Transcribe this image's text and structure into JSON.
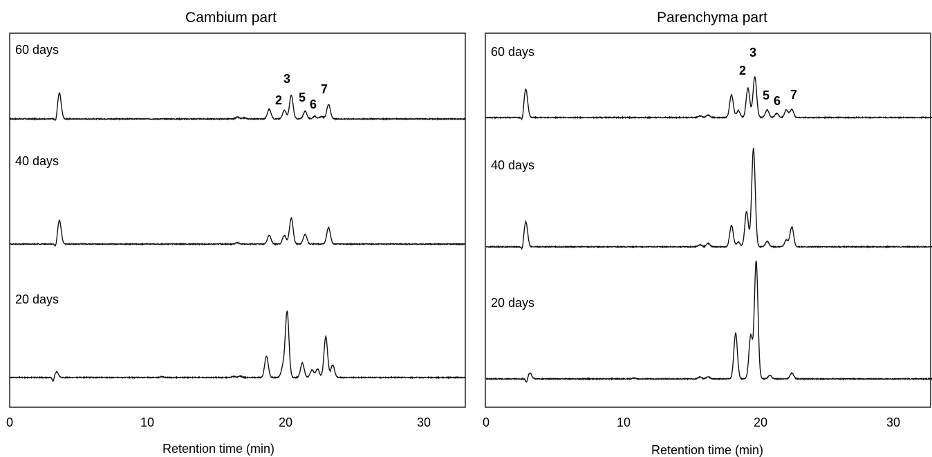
{
  "chart_data": [
    {
      "type": "line",
      "title": "Cambium part",
      "xlabel": "Retention time (min)",
      "ylabel": "",
      "xlim": [
        0,
        33
      ],
      "x_ticks": [
        0,
        10,
        20,
        30
      ],
      "grid": false,
      "series": [
        {
          "name": "60 days",
          "injection": 3.6,
          "peaks": [
            {
              "rt": 3.6,
              "h": 0.75
            },
            {
              "rt": 16.5,
              "h": 0.05
            },
            {
              "rt": 17.0,
              "h": 0.03
            },
            {
              "rt": 18.8,
              "h": 0.28
            },
            {
              "rt": 19.9,
              "h": 0.25
            },
            {
              "rt": 20.4,
              "h": 0.68
            },
            {
              "rt": 21.4,
              "h": 0.22
            },
            {
              "rt": 22.1,
              "h": 0.08
            },
            {
              "rt": 22.6,
              "h": 0.07
            },
            {
              "rt": 23.1,
              "h": 0.42
            }
          ],
          "peak_labels": [
            {
              "text": "2",
              "rt": 19.9
            },
            {
              "text": "3",
              "rt": 20.4
            },
            {
              "text": "5",
              "rt": 21.5
            },
            {
              "text": "6",
              "rt": 22.3
            },
            {
              "text": "7",
              "rt": 23.1
            }
          ]
        },
        {
          "name": "40 days",
          "injection": 3.6,
          "peaks": [
            {
              "rt": 3.6,
              "h": 0.68
            },
            {
              "rt": 16.5,
              "h": 0.04
            },
            {
              "rt": 18.8,
              "h": 0.25
            },
            {
              "rt": 19.9,
              "h": 0.25
            },
            {
              "rt": 20.4,
              "h": 0.75
            },
            {
              "rt": 21.4,
              "h": 0.28
            },
            {
              "rt": 23.1,
              "h": 0.48
            }
          ],
          "peak_labels": []
        },
        {
          "name": "20 days",
          "injection": 3.4,
          "peaks": [
            {
              "rt": 3.4,
              "h": 0.16
            },
            {
              "rt": 11.0,
              "h": 0.02
            },
            {
              "rt": 16.2,
              "h": 0.03
            },
            {
              "rt": 16.7,
              "h": 0.04
            },
            {
              "rt": 18.6,
              "h": 0.62
            },
            {
              "rt": 19.8,
              "h": 0.3
            },
            {
              "rt": 20.1,
              "h": 1.9
            },
            {
              "rt": 21.2,
              "h": 0.42
            },
            {
              "rt": 21.9,
              "h": 0.22
            },
            {
              "rt": 22.3,
              "h": 0.24
            },
            {
              "rt": 22.9,
              "h": 1.18
            },
            {
              "rt": 23.4,
              "h": 0.36
            }
          ],
          "peak_labels": []
        }
      ]
    },
    {
      "type": "line",
      "title": "Parenchyma part",
      "xlabel": "Retention time (min)",
      "ylabel": "",
      "xlim": [
        0,
        33
      ],
      "x_ticks": [
        0,
        10,
        20,
        30
      ],
      "grid": false,
      "series": [
        {
          "name": "60 days",
          "injection": 2.9,
          "peaks": [
            {
              "rt": 2.9,
              "h": 0.82
            },
            {
              "rt": 15.6,
              "h": 0.05
            },
            {
              "rt": 16.2,
              "h": 0.07
            },
            {
              "rt": 17.9,
              "h": 0.66
            },
            {
              "rt": 18.4,
              "h": 0.2
            },
            {
              "rt": 19.1,
              "h": 0.85
            },
            {
              "rt": 19.6,
              "h": 1.18
            },
            {
              "rt": 20.5,
              "h": 0.22
            },
            {
              "rt": 21.2,
              "h": 0.12
            },
            {
              "rt": 21.9,
              "h": 0.22
            },
            {
              "rt": 22.3,
              "h": 0.24
            }
          ],
          "peak_labels": [
            {
              "text": "2",
              "rt": 18.8
            },
            {
              "text": "3",
              "rt": 19.5
            },
            {
              "text": "5",
              "rt": 20.6
            },
            {
              "text": "6",
              "rt": 21.4
            },
            {
              "text": "7",
              "rt": 22.4
            }
          ]
        },
        {
          "name": "40 days",
          "injection": 2.9,
          "peaks": [
            {
              "rt": 2.9,
              "h": 0.72
            },
            {
              "rt": 15.6,
              "h": 0.06
            },
            {
              "rt": 16.2,
              "h": 0.1
            },
            {
              "rt": 17.9,
              "h": 0.62
            },
            {
              "rt": 18.4,
              "h": 0.14
            },
            {
              "rt": 19.0,
              "h": 1.02
            },
            {
              "rt": 19.5,
              "h": 2.85
            },
            {
              "rt": 20.5,
              "h": 0.16
            },
            {
              "rt": 21.9,
              "h": 0.2
            },
            {
              "rt": 22.3,
              "h": 0.58
            }
          ],
          "peak_labels": []
        },
        {
          "name": "20 days",
          "injection": 3.2,
          "peaks": [
            {
              "rt": 3.2,
              "h": 0.17
            },
            {
              "rt": 10.8,
              "h": 0.02
            },
            {
              "rt": 15.6,
              "h": 0.05
            },
            {
              "rt": 16.2,
              "h": 0.06
            },
            {
              "rt": 18.2,
              "h": 1.32
            },
            {
              "rt": 19.3,
              "h": 1.25
            },
            {
              "rt": 19.7,
              "h": 3.4
            },
            {
              "rt": 20.7,
              "h": 0.1
            },
            {
              "rt": 22.3,
              "h": 0.17
            }
          ],
          "peak_labels": []
        }
      ]
    }
  ]
}
